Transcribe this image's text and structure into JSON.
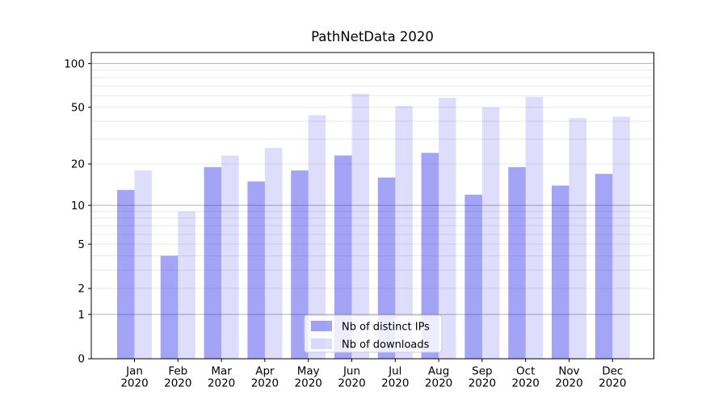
{
  "chart_data": {
    "type": "bar",
    "title": "PathNetData 2020",
    "categories": [
      "Jan",
      "Feb",
      "Mar",
      "Apr",
      "May",
      "Jun",
      "Jul",
      "Aug",
      "Sep",
      "Oct",
      "Nov",
      "Dec"
    ],
    "category_year": "2020",
    "series": [
      {
        "name": "Nb of distinct IPs",
        "color": "rgba(8,8,232,0.37)",
        "values": [
          13,
          4,
          19,
          15,
          18,
          23,
          16,
          24,
          12,
          19,
          14,
          17
        ]
      },
      {
        "name": "Nb of downloads",
        "color": "rgba(8,8,232,0.135)",
        "values": [
          18,
          9,
          23,
          26,
          44,
          62,
          51,
          58,
          50,
          59,
          42,
          43
        ]
      }
    ],
    "y_scale": "log1p",
    "ylim": [
      0,
      119
    ],
    "y_ticks": [
      0,
      1,
      2,
      5,
      10,
      20,
      50,
      100
    ],
    "y_major_gridlines": [
      1,
      10,
      100
    ],
    "y_minor_gridlines": [
      2,
      3,
      4,
      5,
      6,
      7,
      8,
      9,
      20,
      30,
      40,
      50,
      60,
      70,
      80,
      90
    ],
    "grid": "y major+minor",
    "legend_position": "lower center"
  },
  "style": {
    "major_grid_color": "#b3b3b3",
    "minor_grid_color": "#e8e8e8",
    "spine_color": "#000000",
    "legend_border_color": "#cccccc",
    "legend_bg": "rgba(255,255,255,0.8)"
  }
}
